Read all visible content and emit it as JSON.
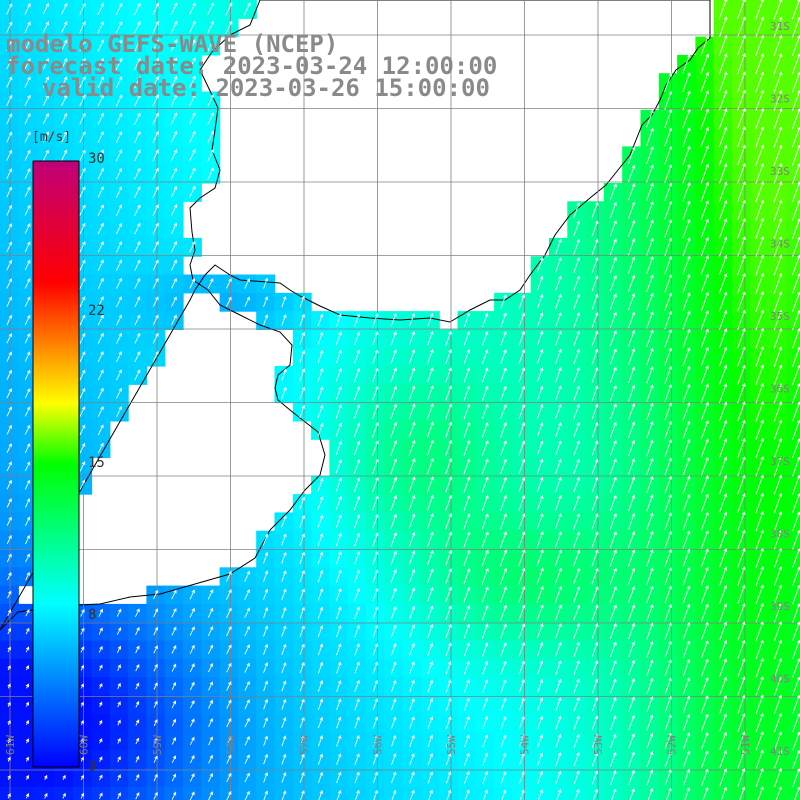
{
  "header": {
    "title_line1": "modelo GEFS-WAVE (NCEP)",
    "title_line2": "forecast date: 2023-03-24 12:00:00",
    "title_line3": "valid date: 2023-03-26 15:00:00"
  },
  "colorbar": {
    "unit": "[m/s]",
    "ticks": [
      "30",
      "22",
      "15",
      "8",
      "0"
    ],
    "range": [
      0,
      30
    ],
    "colors": [
      "#0000ff",
      "#0088ff",
      "#00ffff",
      "#00ff00",
      "#ffff00",
      "#ff8000",
      "#ff0000",
      "#c00090"
    ]
  },
  "map": {
    "lat_labels": [
      "31S",
      "32S",
      "33S",
      "34S",
      "35S",
      "36S",
      "37S",
      "38S",
      "39S",
      "40S",
      "41S"
    ],
    "lon_labels": [
      "61W",
      "60W",
      "59W",
      "58W",
      "57W",
      "56W",
      "55W",
      "54W",
      "53W",
      "52W",
      "51W"
    ],
    "land_color": "#ffffff",
    "grid_color": "#808080"
  }
}
